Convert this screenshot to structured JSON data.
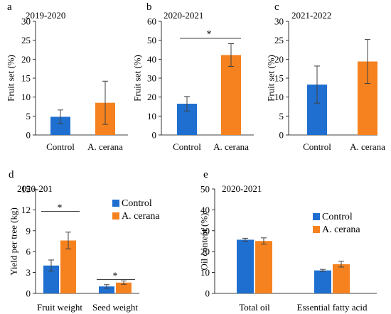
{
  "colors": {
    "control": "#1F6FD0",
    "cerana": "#F5821F",
    "axis": "#000000",
    "errorbar": "#404040"
  },
  "chart_data": [
    {
      "id": "a",
      "panel_letter": "a",
      "type": "bar",
      "title": "2019-2020",
      "ylabel": "Fruit set (%)",
      "ylim": [
        0,
        30
      ],
      "yticks": [
        "0",
        "5",
        "10",
        "15",
        "20",
        "25",
        "30"
      ],
      "categories": [
        "Control",
        "A. cerana"
      ],
      "values": [
        4.8,
        8.5
      ],
      "errors": [
        1.8,
        5.7
      ],
      "significance": []
    },
    {
      "id": "b",
      "panel_letter": "b",
      "type": "bar",
      "title": "2020-2021",
      "ylabel": "Fruit set (%)",
      "ylim": [
        0,
        60
      ],
      "yticks": [
        "0",
        "10",
        "20",
        "30",
        "40",
        "50",
        "60"
      ],
      "categories": [
        "Control",
        "A. cerana"
      ],
      "values": [
        16.5,
        42.2
      ],
      "errors": [
        3.8,
        6.0
      ],
      "significance": [
        {
          "from": 0,
          "to": 1,
          "y": 51,
          "label": "*"
        }
      ]
    },
    {
      "id": "c",
      "panel_letter": "c",
      "type": "bar",
      "title": "2021-2022",
      "ylabel": "Fruit set (%)",
      "ylim": [
        0,
        30
      ],
      "yticks": [
        "0",
        "5",
        "10",
        "15",
        "20",
        "25",
        "30"
      ],
      "categories": [
        "Control",
        "A. cerana"
      ],
      "values": [
        13.3,
        19.4
      ],
      "errors": [
        4.9,
        5.8
      ],
      "significance": []
    },
    {
      "id": "d",
      "panel_letter": "d",
      "type": "bar",
      "title": "2020-201",
      "ylabel": "Yield per tree (kg)",
      "ylim": [
        0,
        15
      ],
      "yticks": [
        "0",
        "3",
        "6",
        "9",
        "12",
        "15"
      ],
      "categories": [
        "Fruit weight",
        "Seed weight"
      ],
      "series": [
        {
          "name": "Control",
          "values": [
            4.0,
            1.0
          ],
          "errors": [
            0.8,
            0.25
          ]
        },
        {
          "name": "A. cerana",
          "values": [
            7.6,
            1.55
          ],
          "errors": [
            1.2,
            0.25
          ]
        }
      ],
      "legend": "top-center",
      "significance": [
        {
          "group": 0,
          "y": 11.8,
          "label": "*"
        },
        {
          "group": 1,
          "y": 2.0,
          "label": "*"
        }
      ]
    },
    {
      "id": "e",
      "panel_letter": "e",
      "type": "bar",
      "title": "2020-2021",
      "ylabel": "Oil content (%)",
      "ylim": [
        0,
        50
      ],
      "yticks": [
        "0",
        "10",
        "20",
        "30",
        "40",
        "50"
      ],
      "categories": [
        "Total oil",
        "Essential fatty acid"
      ],
      "series": [
        {
          "name": "Control",
          "values": [
            25.7,
            11.0
          ],
          "errors": [
            0.7,
            0.5
          ]
        },
        {
          "name": "A. cerana",
          "values": [
            25.1,
            14.0
          ],
          "errors": [
            1.5,
            1.4
          ]
        }
      ],
      "legend": "top-left",
      "significance": []
    }
  ]
}
